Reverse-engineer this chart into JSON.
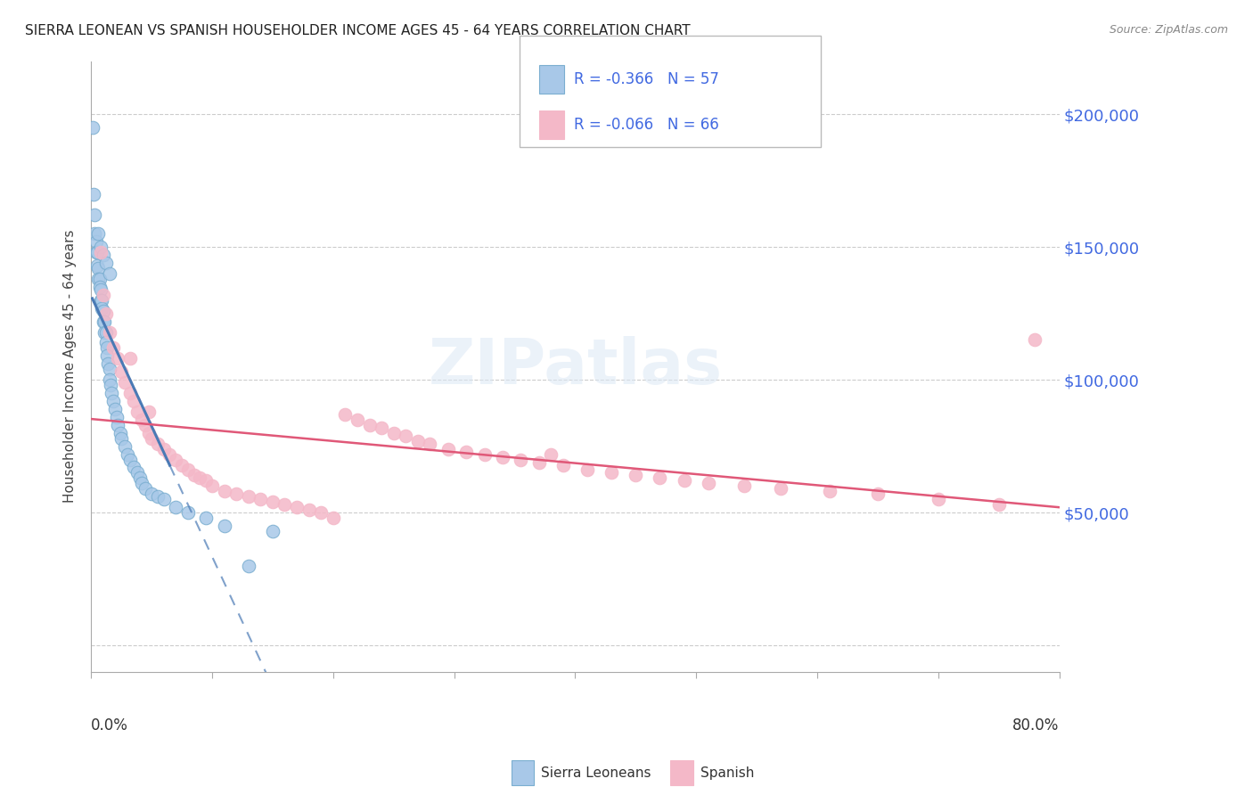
{
  "title": "SIERRA LEONEAN VS SPANISH HOUSEHOLDER INCOME AGES 45 - 64 YEARS CORRELATION CHART",
  "source": "Source: ZipAtlas.com",
  "ylabel": "Householder Income Ages 45 - 64 years",
  "yticks": [
    0,
    50000,
    100000,
    150000,
    200000
  ],
  "ytick_labels": [
    "",
    "$50,000",
    "$100,000",
    "$150,000",
    "$200,000"
  ],
  "xmin": 0.0,
  "xmax": 0.8,
  "ymin": -10000,
  "ymax": 220000,
  "legend_label1": "Sierra Leoneans",
  "legend_label2": "Spanish",
  "legend_R1": "R = -0.366",
  "legend_N1": "N = 57",
  "legend_R2": "R = -0.066",
  "legend_N2": "N = 66",
  "color_blue": "#a8c8e8",
  "color_blue_edge": "#7aaed0",
  "color_pink": "#f4b8c8",
  "color_pink_edge": "#f4b8c8",
  "color_line_blue": "#4a7ab5",
  "color_line_pink": "#e05878",
  "color_ytick": "#4169E1",
  "blue_points_x": [
    0.001,
    0.002,
    0.003,
    0.003,
    0.004,
    0.004,
    0.005,
    0.005,
    0.006,
    0.006,
    0.007,
    0.007,
    0.008,
    0.008,
    0.009,
    0.009,
    0.01,
    0.01,
    0.011,
    0.011,
    0.012,
    0.012,
    0.013,
    0.013,
    0.014,
    0.015,
    0.015,
    0.016,
    0.017,
    0.018,
    0.02,
    0.021,
    0.022,
    0.024,
    0.025,
    0.028,
    0.03,
    0.032,
    0.035,
    0.038,
    0.04,
    0.042,
    0.045,
    0.05,
    0.055,
    0.06,
    0.07,
    0.08,
    0.095,
    0.11,
    0.13,
    0.15,
    0.006,
    0.008,
    0.01,
    0.012,
    0.015
  ],
  "blue_points_y": [
    195000,
    170000,
    162000,
    155000,
    152000,
    148000,
    148000,
    143000,
    142000,
    138000,
    138000,
    135000,
    134000,
    130000,
    130000,
    127000,
    126000,
    122000,
    122000,
    118000,
    118000,
    114000,
    112000,
    109000,
    106000,
    104000,
    100000,
    98000,
    95000,
    92000,
    89000,
    86000,
    83000,
    80000,
    78000,
    75000,
    72000,
    70000,
    67000,
    65000,
    63000,
    61000,
    59000,
    57000,
    56000,
    55000,
    52000,
    50000,
    48000,
    45000,
    30000,
    43000,
    155000,
    150000,
    147000,
    144000,
    140000
  ],
  "pink_points_x": [
    0.008,
    0.01,
    0.012,
    0.015,
    0.018,
    0.022,
    0.025,
    0.028,
    0.032,
    0.035,
    0.038,
    0.042,
    0.045,
    0.048,
    0.05,
    0.055,
    0.06,
    0.065,
    0.07,
    0.075,
    0.08,
    0.085,
    0.09,
    0.095,
    0.1,
    0.11,
    0.12,
    0.13,
    0.14,
    0.15,
    0.16,
    0.17,
    0.18,
    0.19,
    0.2,
    0.21,
    0.22,
    0.23,
    0.24,
    0.25,
    0.26,
    0.27,
    0.28,
    0.295,
    0.31,
    0.325,
    0.34,
    0.355,
    0.37,
    0.39,
    0.41,
    0.43,
    0.45,
    0.47,
    0.49,
    0.51,
    0.54,
    0.57,
    0.61,
    0.65,
    0.7,
    0.75,
    0.78,
    0.032,
    0.048,
    0.38
  ],
  "pink_points_y": [
    148000,
    132000,
    125000,
    118000,
    112000,
    108000,
    103000,
    99000,
    95000,
    92000,
    88000,
    85000,
    83000,
    80000,
    78000,
    76000,
    74000,
    72000,
    70000,
    68000,
    66000,
    64000,
    63000,
    62000,
    60000,
    58000,
    57000,
    56000,
    55000,
    54000,
    53000,
    52000,
    51000,
    50000,
    48000,
    87000,
    85000,
    83000,
    82000,
    80000,
    79000,
    77000,
    76000,
    74000,
    73000,
    72000,
    71000,
    70000,
    69000,
    68000,
    66000,
    65000,
    64000,
    63000,
    62000,
    61000,
    60000,
    59000,
    58000,
    57000,
    55000,
    53000,
    115000,
    108000,
    88000,
    72000
  ]
}
